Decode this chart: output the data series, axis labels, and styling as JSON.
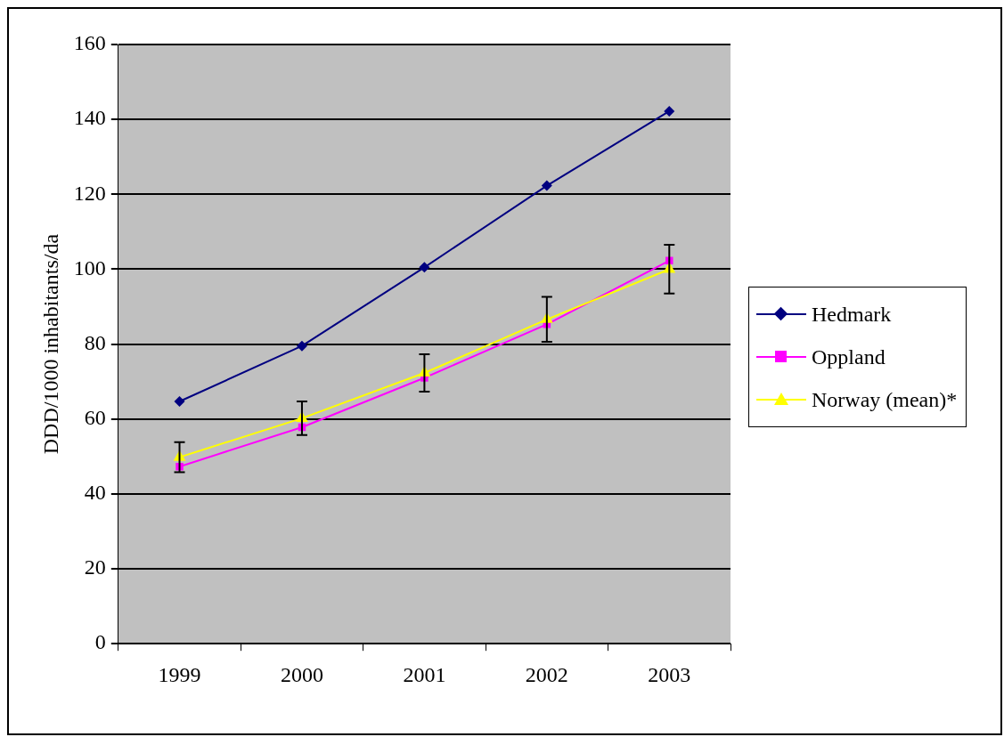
{
  "chart_data": {
    "type": "line",
    "ylabel": "DDD/1000 inhabitants/da",
    "categories": [
      "1999",
      "2000",
      "2001",
      "2002",
      "2003"
    ],
    "series": [
      {
        "name": "Hedmark",
        "color": "#000080",
        "marker": "diamond",
        "values": [
          64.7,
          79.5,
          100.5,
          122.3,
          142.2
        ]
      },
      {
        "name": "Oppland",
        "color": "#ff00ff",
        "marker": "square",
        "values": [
          47.3,
          57.8,
          71,
          85.3,
          102.3
        ]
      },
      {
        "name": "Norway (mean)*",
        "color": "#ffff00",
        "marker": "triangle",
        "values": [
          49.8,
          60.2,
          72.3,
          86.6,
          100
        ],
        "errors": [
          4,
          4.5,
          5,
          6,
          6.5
        ]
      }
    ],
    "ylim": [
      0,
      160
    ],
    "yticks": [
      0,
      20,
      40,
      60,
      80,
      100,
      120,
      140,
      160
    ],
    "grid": "y",
    "legend": "right"
  }
}
